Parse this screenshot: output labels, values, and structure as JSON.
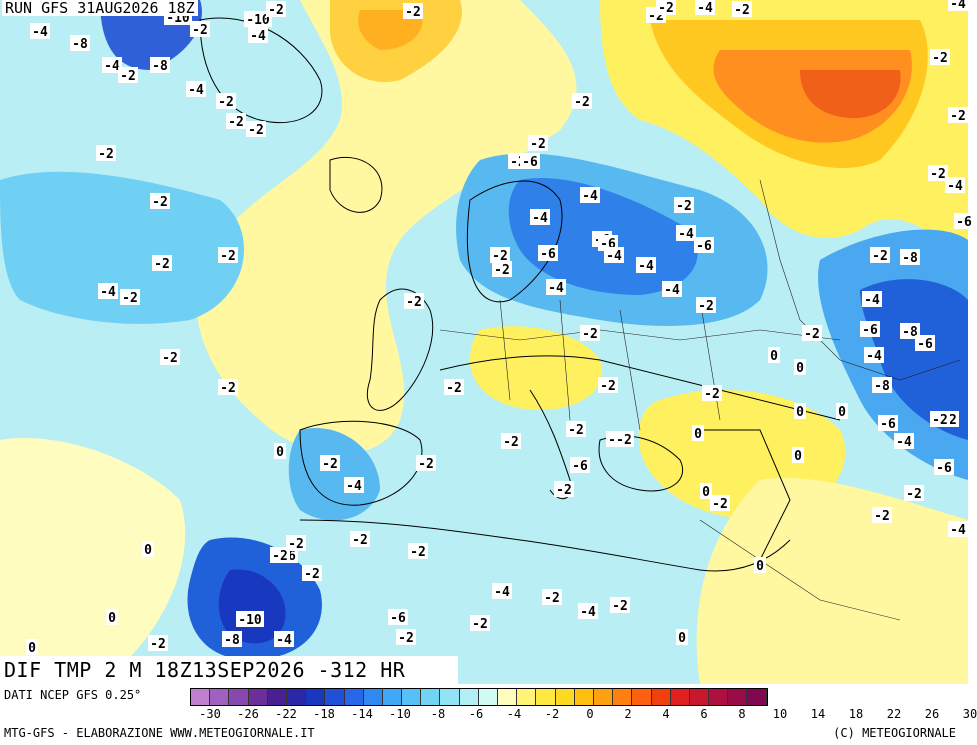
{
  "header": {
    "run": "RUN GFS 31AUG2026 18Z"
  },
  "title": {
    "text": "DIF TMP 2 M 18Z13SEP2026 -312 HR"
  },
  "footer": {
    "source": "DATI NCEP GFS 0.25°",
    "credit": "MTG-GFS - ELABORAZIONE WWW.METEOGIORNALE.IT",
    "copyright": "(C) METEOGIORNALE"
  },
  "legend": {
    "colors": [
      "#c080d0",
      "#a060c0",
      "#8848b0",
      "#6a3098",
      "#4a2090",
      "#2a28a8",
      "#1838c0",
      "#2050d8",
      "#2868e8",
      "#3088f0",
      "#40a8f4",
      "#58c0f4",
      "#70d4f4",
      "#90e4f4",
      "#b0f0f4",
      "#d0faf4",
      "#fffcc0",
      "#fff478",
      "#ffe840",
      "#ffd820",
      "#ffc010",
      "#ffa010",
      "#ff8010",
      "#ff6010",
      "#f04010",
      "#e02020",
      "#c81830",
      "#b01040",
      "#980c48",
      "#800850"
    ],
    "ticks": [
      "-30",
      "-26",
      "-22",
      "-18",
      "-14",
      "-10",
      "-8",
      "-6",
      "-4",
      "-2",
      "0",
      "2",
      "4",
      "6",
      "8",
      "10",
      "14",
      "18",
      "22",
      "26",
      "30"
    ]
  },
  "labels": [
    {
      "t": "-4"
    },
    {
      "t": "-8"
    },
    {
      "t": "-10"
    },
    {
      "t": "-2"
    },
    {
      "t": "-10"
    },
    {
      "t": "-4"
    },
    {
      "t": "-2"
    },
    {
      "t": "-2"
    },
    {
      "t": "-4"
    },
    {
      "t": "-2"
    },
    {
      "t": "-8"
    },
    {
      "t": "-4"
    },
    {
      "t": "-2"
    },
    {
      "t": "-2"
    },
    {
      "t": "-2"
    },
    {
      "t": "-2"
    },
    {
      "t": "-2"
    },
    {
      "t": "-2"
    },
    {
      "t": "-2"
    },
    {
      "t": "-2"
    },
    {
      "t": "-4"
    },
    {
      "t": "-2"
    },
    {
      "t": "-2"
    },
    {
      "t": "-4"
    },
    {
      "t": "-6"
    },
    {
      "t": "-2"
    },
    {
      "t": "-2"
    },
    {
      "t": "-4"
    },
    {
      "t": "-2"
    },
    {
      "t": "-4"
    },
    {
      "t": "-6"
    },
    {
      "t": "-4"
    },
    {
      "t": "-6"
    },
    {
      "t": "-4"
    },
    {
      "t": "-6"
    },
    {
      "t": "-6"
    },
    {
      "t": "-2"
    },
    {
      "t": "-2"
    },
    {
      "t": "-2"
    },
    {
      "t": "-4"
    },
    {
      "t": "-4"
    },
    {
      "t": "-2"
    },
    {
      "t": "-4"
    },
    {
      "t": "-2"
    },
    {
      "t": "-2"
    },
    {
      "t": "0"
    },
    {
      "t": "-2"
    },
    {
      "t": "-2"
    },
    {
      "t": "-2"
    },
    {
      "t": "0"
    },
    {
      "t": "-2"
    },
    {
      "t": "-2"
    },
    {
      "t": "-2"
    },
    {
      "t": "-2"
    },
    {
      "t": "0"
    },
    {
      "t": "-2"
    },
    {
      "t": "-6"
    },
    {
      "t": "-2"
    },
    {
      "t": "-4"
    },
    {
      "t": "-2"
    },
    {
      "t": "-2"
    },
    {
      "t": "-6"
    },
    {
      "t": "-2"
    },
    {
      "t": "-2"
    },
    {
      "t": "-2"
    },
    {
      "t": "-2"
    },
    {
      "t": "-8"
    },
    {
      "t": "-10"
    },
    {
      "t": "-4"
    },
    {
      "t": "-2"
    },
    {
      "t": "-2"
    },
    {
      "t": "0"
    },
    {
      "t": "-2"
    },
    {
      "t": "-4"
    },
    {
      "t": "-2"
    },
    {
      "t": "-4"
    },
    {
      "t": "-6"
    },
    {
      "t": "-2"
    },
    {
      "t": "-2"
    },
    {
      "t": "0"
    },
    {
      "t": "0"
    },
    {
      "t": "0"
    },
    {
      "t": "0"
    },
    {
      "t": "-2"
    },
    {
      "t": "-2"
    },
    {
      "t": "-8"
    },
    {
      "t": "-6"
    },
    {
      "t": "-4"
    },
    {
      "t": "-8"
    },
    {
      "t": "-6"
    },
    {
      "t": "-6"
    },
    {
      "t": "-4"
    },
    {
      "t": "-4"
    },
    {
      "t": "-8"
    },
    {
      "t": "-6"
    },
    {
      "t": "-2"
    },
    {
      "t": "-2"
    },
    {
      "t": "-2"
    },
    {
      "t": "-4"
    },
    {
      "t": "-6"
    },
    {
      "t": "-2"
    },
    {
      "t": "-2"
    },
    {
      "t": "-4"
    },
    {
      "t": "0"
    },
    {
      "t": "0"
    },
    {
      "t": "0"
    },
    {
      "t": "-2"
    },
    {
      "t": "0"
    },
    {
      "t": "-2"
    },
    {
      "t": "0"
    },
    {
      "t": "-2"
    },
    {
      "t": "-2"
    },
    {
      "t": "-4"
    },
    {
      "t": "-2"
    },
    {
      "t": "-2"
    },
    {
      "t": "0"
    }
  ]
}
